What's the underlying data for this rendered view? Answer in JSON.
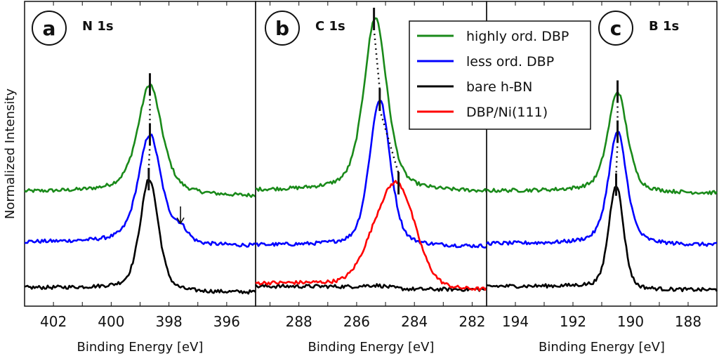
{
  "chart_data": {
    "type": "line",
    "ylabel": "Normalized Intensity",
    "ylim": [
      0,
      1
    ],
    "grid": false,
    "legend": {
      "placement": "top-center (panel b/c)",
      "entries": [
        {
          "label": "highly ord. DBP",
          "color": "#1a8a1a"
        },
        {
          "label": "less ord. DBP",
          "color": "#0000ff"
        },
        {
          "label": "bare h-BN",
          "color": "#000000"
        },
        {
          "label": "DBP/Ni(111)",
          "color": "#ff0000"
        }
      ]
    },
    "panels": [
      {
        "letter": "a",
        "title": "N 1s",
        "xlabel": "Binding Energy [eV]",
        "xlim": [
          403,
          395
        ],
        "xticks": [
          "402",
          "400",
          "398",
          "396"
        ],
        "xtick_values": [
          402,
          400,
          398,
          396
        ],
        "arrow_annotation_at": 397.6,
        "series": [
          {
            "name": "highly ord. DBP",
            "color": "#1a8a1a",
            "baseline": [
              0.375,
              0.36
            ],
            "center": 398.66,
            "amplitude": 0.36,
            "fwhm": 1.0,
            "eta": 0.6,
            "peak_marker": 398.66
          },
          {
            "name": "less ord. DBP",
            "color": "#0000ff",
            "baseline": [
              0.21,
              0.197
            ],
            "center": 398.66,
            "amplitude": 0.36,
            "fwhm": 0.95,
            "eta": 0.5,
            "shoulder": {
              "center": 397.6,
              "amplitude": 0.04,
              "fwhm": 0.6
            },
            "peak_marker": 398.66
          },
          {
            "name": "bare h-BN",
            "color": "#000000",
            "baseline": [
              0.06,
              0.045
            ],
            "center": 398.68,
            "amplitude": 0.365,
            "fwhm": 0.75,
            "eta": 0.4,
            "peak_marker": 398.7
          }
        ]
      },
      {
        "letter": "b",
        "title": "C 1s",
        "xlabel": "Binding Energy [eV]",
        "xlim": [
          289.5,
          281.5
        ],
        "xticks": [
          "288",
          "286",
          "284",
          "282"
        ],
        "xtick_values": [
          288,
          286,
          284,
          282
        ],
        "series": [
          {
            "name": "highly ord. DBP",
            "color": "#1a8a1a",
            "baseline": [
              0.38,
              0.375
            ],
            "center": 285.35,
            "amplitude": 0.57,
            "fwhm": 0.95,
            "eta": 0.5,
            "peak_marker": 285.4
          },
          {
            "name": "less ord. DBP",
            "color": "#0000ff",
            "baseline": [
              0.2,
              0.195
            ],
            "center": 285.2,
            "amplitude": 0.48,
            "fwhm": 0.85,
            "eta": 0.4,
            "peak_marker": 285.2
          },
          {
            "name": "bare h-BN",
            "color": "#000000",
            "baseline": [
              0.065,
              0.055
            ],
            "center": 285.3,
            "amplitude": 0.008,
            "fwhm": 1.0,
            "eta": 0.0
          },
          {
            "name": "DBP/Ni(111)",
            "color": "#ff0000",
            "baseline": [
              0.075,
              0.052
            ],
            "center": 284.55,
            "amplitude": 0.32,
            "fwhm": 1.45,
            "eta": 0.2,
            "shoulder": {
              "center": 285.4,
              "amplitude": 0.08,
              "fwhm": 1.2
            },
            "peak_marker": 284.55
          }
        ]
      },
      {
        "letter": "c",
        "title": "B 1s",
        "xlabel": "Binding Energy [eV]",
        "xlim": [
          195,
          187
        ],
        "xticks": [
          "194",
          "192",
          "190",
          "188"
        ],
        "xtick_values": [
          194,
          192,
          190,
          188
        ],
        "series": [
          {
            "name": "highly ord. DBP",
            "color": "#1a8a1a",
            "baseline": [
              0.378,
              0.37
            ],
            "center": 190.45,
            "amplitude": 0.33,
            "fwhm": 0.8,
            "eta": 0.5,
            "peak_marker": 190.45
          },
          {
            "name": "less ord. DBP",
            "color": "#0000ff",
            "baseline": [
              0.205,
              0.2
            ],
            "center": 190.45,
            "amplitude": 0.37,
            "fwhm": 0.75,
            "eta": 0.5,
            "peak_marker": 190.45
          },
          {
            "name": "bare h-BN",
            "color": "#000000",
            "baseline": [
              0.065,
              0.053
            ],
            "center": 190.5,
            "amplitude": 0.34,
            "fwhm": 0.6,
            "eta": 0.3,
            "peak_marker": 190.5
          }
        ]
      }
    ]
  }
}
